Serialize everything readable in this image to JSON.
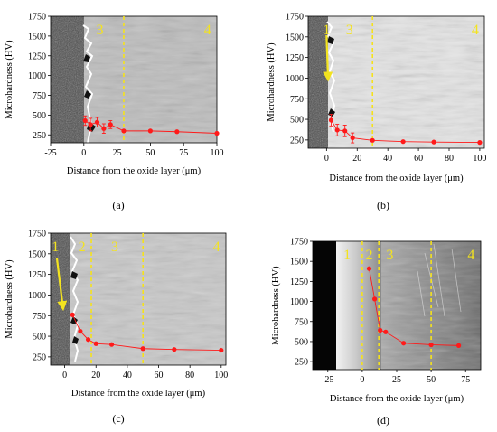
{
  "figure": {
    "panels": [
      {
        "letter": "(a)"
      },
      {
        "letter": "(b)"
      },
      {
        "letter": "(c)"
      },
      {
        "letter": "(d)"
      }
    ]
  },
  "colors": {
    "series": "#ff1a1a",
    "zone_line": "#f5e21c",
    "zone_label": "#f3e31f"
  },
  "chart_data": [
    {
      "type": "scatter",
      "title": "",
      "xlabel": "Distance from the oxide layer (μm)",
      "ylabel": "Microhardness (HV)",
      "xlim": [
        -25,
        100
      ],
      "ylim": [
        150,
        1750
      ],
      "xticks": [
        -25,
        0,
        25,
        50,
        75,
        100
      ],
      "yticks": [
        250,
        500,
        750,
        1000,
        1250,
        1500,
        1750
      ],
      "zone_boundaries": [
        30
      ],
      "zone_labels": [
        {
          "text": "3",
          "x": 12
        },
        {
          "text": "4",
          "x": 93
        }
      ],
      "arrows": [],
      "x": [
        1,
        5,
        10,
        15,
        20,
        30,
        50,
        70,
        100
      ],
      "values": [
        430,
        380,
        410,
        330,
        380,
        300,
        300,
        290,
        270
      ],
      "error": [
        60,
        80,
        60,
        60,
        50,
        0,
        0,
        0,
        0
      ]
    },
    {
      "type": "scatter",
      "title": "",
      "xlabel": "Distance from the oxide layer (μm)",
      "ylabel": "Microhardness (HV)",
      "xlim": [
        -12,
        103
      ],
      "ylim": [
        150,
        1750
      ],
      "xticks": [
        0,
        20,
        40,
        60,
        80,
        100
      ],
      "yticks": [
        250,
        500,
        750,
        1000,
        1250,
        1500,
        1750
      ],
      "zone_boundaries": [
        30
      ],
      "zone_labels": [
        {
          "text": "1",
          "x": 0
        },
        {
          "text": "3",
          "x": 15
        },
        {
          "text": "4",
          "x": 97
        }
      ],
      "arrows": [
        {
          "from": [
            0,
            1520
          ],
          "to": [
            1,
            980
          ]
        }
      ],
      "x": [
        3,
        7,
        12,
        17,
        30,
        50,
        70,
        100
      ],
      "values": [
        490,
        370,
        360,
        275,
        245,
        230,
        225,
        220
      ],
      "error": [
        70,
        70,
        70,
        60,
        0,
        0,
        0,
        0
      ]
    },
    {
      "type": "scatter",
      "title": "",
      "xlabel": "Distance from the oxide layer (μm)",
      "ylabel": "Microhardness (HV)",
      "xlim": [
        -9,
        103
      ],
      "ylim": [
        150,
        1750
      ],
      "xticks": [
        0,
        20,
        40,
        60,
        80,
        100
      ],
      "yticks": [
        250,
        500,
        750,
        1000,
        1250,
        1500,
        1750
      ],
      "zone_boundaries": [
        17,
        50
      ],
      "zone_labels": [
        {
          "text": "1",
          "x": -6
        },
        {
          "text": "2",
          "x": 11
        },
        {
          "text": "3",
          "x": 32
        },
        {
          "text": "4",
          "x": 97
        }
      ],
      "arrows": [
        {
          "from": [
            -5,
            1450
          ],
          "to": [
            -1,
            830
          ]
        }
      ],
      "x": [
        5,
        10,
        15,
        20,
        30,
        50,
        70,
        100
      ],
      "values": [
        760,
        560,
        460,
        410,
        400,
        350,
        340,
        330
      ],
      "error": [
        0,
        0,
        0,
        0,
        0,
        0,
        0,
        0
      ]
    },
    {
      "type": "scatter",
      "title": "",
      "xlabel": "Distance from the oxide layer (μm)",
      "ylabel": "Microhardness (HV)",
      "xlim": [
        -36,
        86
      ],
      "ylim": [
        150,
        1750
      ],
      "xticks": [
        -25,
        0,
        25,
        50,
        75
      ],
      "yticks": [
        250,
        500,
        750,
        1000,
        1250,
        1500,
        1750
      ],
      "zone_boundaries": [
        0,
        12,
        50
      ],
      "zone_labels": [
        {
          "text": "1",
          "x": -11
        },
        {
          "text": "2",
          "x": 5
        },
        {
          "text": "3",
          "x": 20
        },
        {
          "text": "4",
          "x": 79
        }
      ],
      "arrows": [],
      "x": [
        5,
        9,
        13,
        17,
        30,
        50,
        70
      ],
      "values": [
        1410,
        1030,
        640,
        620,
        480,
        460,
        450
      ],
      "error": [
        0,
        0,
        0,
        0,
        0,
        0,
        0
      ]
    }
  ]
}
